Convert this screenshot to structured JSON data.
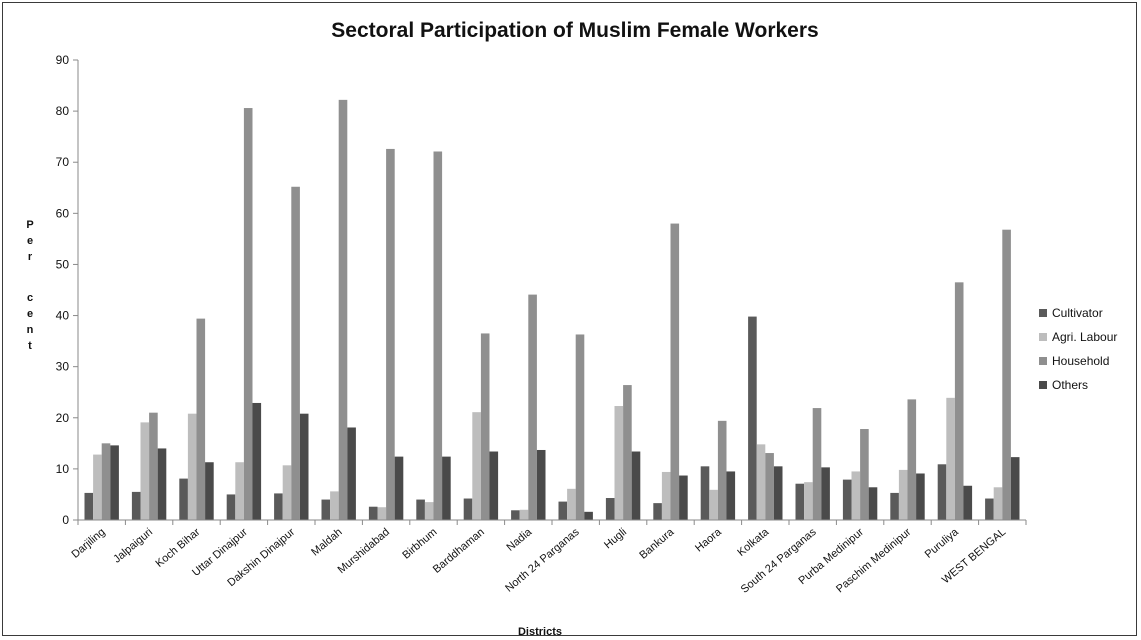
{
  "chart_data": {
    "type": "bar",
    "title": "Sectoral Participation of Muslim Female Workers",
    "xlabel": "Districts",
    "ylabel": "Per cent",
    "ylim": [
      0,
      90
    ],
    "yticks": [
      0,
      10,
      20,
      30,
      40,
      50,
      60,
      70,
      80,
      90
    ],
    "grid": false,
    "legend_position": "right",
    "categories": [
      "Darjiling",
      "Jalpaiguri",
      "Koch Bihar",
      "Uttar Dinajpur",
      "Dakshin Dinajpur",
      "Maldah",
      "Murshidabad",
      "Birbhum",
      "Barddhaman",
      "Nadia",
      "North 24 Parganas",
      "Hugli",
      "Bankura",
      "Haora",
      "Kolkata",
      "South 24 Parganas",
      "Purba Medinipur",
      "Paschim Medinipur",
      "Puruliya",
      "WEST BENGAL"
    ],
    "series": [
      {
        "name": "Cultivator",
        "color": "#5a5a5a",
        "values": [
          5.3,
          5.5,
          8.1,
          5.0,
          5.2,
          4.0,
          2.6,
          4.0,
          4.2,
          1.9,
          3.6,
          4.3,
          3.3,
          10.5,
          39.8,
          7.1,
          7.9,
          5.3,
          10.9,
          4.2
        ]
      },
      {
        "name": "Agri. Labour",
        "color": "#bdbdbd",
        "values": [
          12.8,
          19.1,
          20.8,
          11.3,
          10.7,
          5.6,
          2.5,
          3.5,
          21.1,
          2.0,
          6.1,
          22.3,
          9.4,
          5.9,
          14.8,
          7.4,
          9.5,
          9.8,
          23.9,
          6.4
        ]
      },
      {
        "name": "Household",
        "color": "#8f8f8f",
        "values": [
          15.0,
          21.0,
          39.4,
          80.6,
          65.2,
          82.2,
          72.6,
          72.1,
          36.5,
          44.1,
          36.3,
          26.4,
          58.0,
          19.4,
          13.1,
          21.9,
          17.8,
          23.6,
          46.5,
          56.8
        ]
      },
      {
        "name": "Others",
        "color": "#4a4a4a",
        "values": [
          14.6,
          14.0,
          11.3,
          22.9,
          20.8,
          18.1,
          12.4,
          12.4,
          13.4,
          13.7,
          1.6,
          13.4,
          8.7,
          9.5,
          10.5,
          10.3,
          6.4,
          9.1,
          6.7,
          12.3
        ]
      }
    ]
  }
}
